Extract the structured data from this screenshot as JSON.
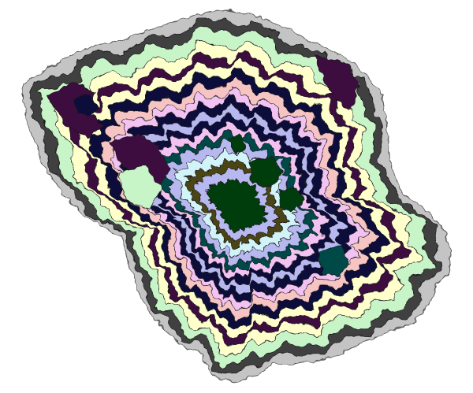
{
  "map": {
    "type": "contour-zone map (no text, legend or controls shown)",
    "zone_colors": {
      "outer_halo": "#c4c4c4",
      "dark_gray": "#3f3f3f",
      "mint": "#c8f5c8",
      "cream": "#ffffcc",
      "plum": "#3d0a40",
      "navy": "#0c0c3a",
      "pink": "#f7c4c4",
      "lavender": "#f2c2f2",
      "periwinkle": "#b8b8f0",
      "pale_cyan": "#d2f4f8",
      "olive": "#4b4518",
      "forest": "#003c10",
      "teal": "#004848"
    },
    "band_order_outer_to_inner": [
      "outer_halo",
      "dark_gray",
      "mint",
      "cream",
      "plum",
      "navy",
      "pink",
      "lavender",
      "periwinkle",
      "navy",
      "lavender",
      "teal",
      "pale_cyan",
      "olive",
      "forest"
    ]
  }
}
